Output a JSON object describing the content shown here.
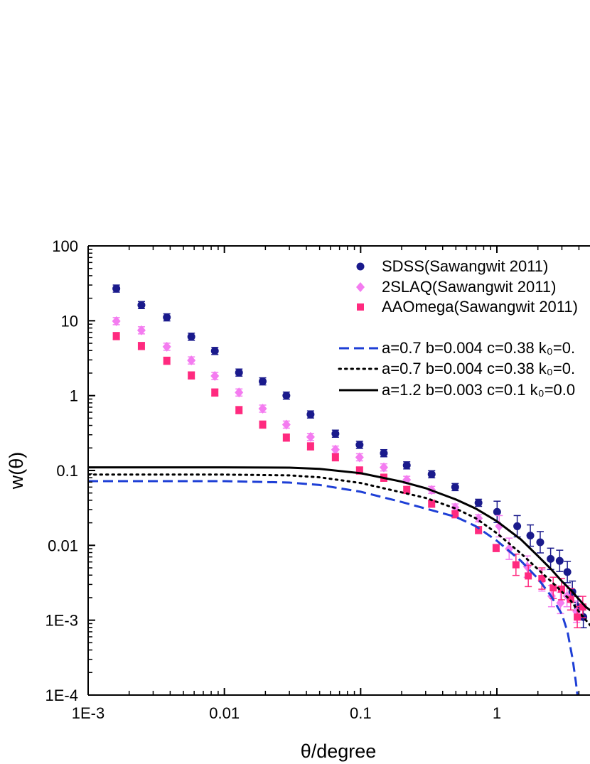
{
  "chart_data": {
    "type": "scatter",
    "x_scale": "log",
    "y_scale": "log",
    "xlim": [
      0.001,
      5
    ],
    "ylim": [
      0.0001,
      100
    ],
    "xlabel": "θ/degree",
    "ylabel": "w(θ)",
    "x_ticks": [
      {
        "value": 0.001,
        "label": "1E-3"
      },
      {
        "value": 0.01,
        "label": "0.01"
      },
      {
        "value": 0.1,
        "label": "0.1"
      },
      {
        "value": 1,
        "label": "1"
      }
    ],
    "y_ticks": [
      {
        "value": 0.0001,
        "label": "1E-4"
      },
      {
        "value": 0.001,
        "label": "1E-3"
      },
      {
        "value": 0.01,
        "label": "0.01"
      },
      {
        "value": 0.1,
        "label": "0.1"
      },
      {
        "value": 1,
        "label": "1"
      },
      {
        "value": 10,
        "label": "10"
      },
      {
        "value": 100,
        "label": "100"
      }
    ],
    "legend_position": "top-right",
    "series": [
      {
        "name": "SDSS(Sawangwit 2011)",
        "kind": "points",
        "marker": "circle",
        "color": "#1a1a8c",
        "x": [
          0.00161,
          0.00246,
          0.00378,
          0.00572,
          0.00851,
          0.0128,
          0.0191,
          0.0285,
          0.0429,
          0.0653,
          0.0982,
          0.148,
          0.218,
          0.332,
          0.494,
          0.733,
          1.004,
          1.41,
          1.76,
          2.08,
          2.48,
          2.89,
          3.29,
          3.58,
          3.93,
          4.31
        ],
        "y": [
          26.9,
          16.2,
          11.1,
          6.12,
          3.95,
          2.03,
          1.55,
          1.0,
          0.56,
          0.31,
          0.22,
          0.17,
          0.117,
          0.089,
          0.06,
          0.037,
          0.028,
          0.018,
          0.0135,
          0.011,
          0.0066,
          0.0062,
          0.0044,
          0.0024,
          0.0015,
          0.0011
        ]
      },
      {
        "name": "2SLAQ(Sawangwit 2011)",
        "kind": "points",
        "marker": "diamond",
        "color": "#f47cf0",
        "x": [
          0.00161,
          0.00246,
          0.00378,
          0.00572,
          0.00851,
          0.0128,
          0.0191,
          0.0285,
          0.0429,
          0.0653,
          0.0982,
          0.148,
          0.218,
          0.332,
          0.494,
          0.733,
          1.04,
          1.23,
          1.67,
          2.14,
          2.52,
          2.93,
          3.27,
          3.85
        ],
        "y": [
          9.88,
          7.45,
          4.5,
          2.95,
          1.83,
          1.1,
          0.67,
          0.41,
          0.28,
          0.19,
          0.15,
          0.11,
          0.075,
          0.055,
          0.032,
          0.023,
          0.018,
          0.009,
          0.0052,
          0.0034,
          0.0021,
          0.0017,
          0.0021,
          0.0013
        ]
      },
      {
        "name": "AAOmega(Sawangwit 2011)",
        "kind": "points",
        "marker": "square",
        "color": "#ff2a7f",
        "x": [
          0.00161,
          0.00246,
          0.00378,
          0.00572,
          0.00851,
          0.0128,
          0.0191,
          0.0285,
          0.0429,
          0.0653,
          0.0982,
          0.148,
          0.218,
          0.332,
          0.494,
          0.733,
          0.987,
          1.38,
          1.7,
          2.14,
          2.59,
          2.98,
          3.48,
          3.89,
          4.27
        ],
        "y": [
          6.24,
          4.6,
          2.92,
          1.86,
          1.1,
          0.64,
          0.41,
          0.275,
          0.21,
          0.15,
          0.1,
          0.08,
          0.055,
          0.036,
          0.026,
          0.016,
          0.0092,
          0.0055,
          0.0039,
          0.0036,
          0.0027,
          0.0026,
          0.0019,
          0.0011,
          0.0015
        ]
      },
      {
        "name": "a=0.7 b=0.004 c=0.38 k₀=0.",
        "kind": "line",
        "dash": "dashed",
        "color": "#1e3fd6",
        "x": [
          0.001,
          0.01,
          0.03,
          0.05,
          0.1,
          0.2,
          0.3,
          0.5,
          0.7,
          1.0,
          1.5,
          2.0,
          2.5,
          3.0,
          3.3,
          3.6,
          3.8,
          3.9
        ],
        "y": [
          0.072,
          0.072,
          0.069,
          0.064,
          0.052,
          0.038,
          0.031,
          0.024,
          0.018,
          0.0115,
          0.0062,
          0.0036,
          0.0021,
          0.0012,
          0.0007,
          0.0003,
          0.00015,
          0.0001
        ]
      },
      {
        "name": "a=0.7 b=0.004 c=0.38 k₀=0.",
        "kind": "line",
        "dash": "dotted",
        "color": "#000000",
        "x": [
          0.001,
          0.01,
          0.03,
          0.05,
          0.1,
          0.2,
          0.3,
          0.5,
          0.7,
          1.0,
          1.5,
          2.0,
          2.5,
          3.0,
          3.5,
          4.0,
          4.5,
          5.0
        ],
        "y": [
          0.088,
          0.088,
          0.086,
          0.081,
          0.068,
          0.051,
          0.043,
          0.031,
          0.023,
          0.0145,
          0.0078,
          0.0048,
          0.0033,
          0.0024,
          0.0018,
          0.0013,
          0.001,
          0.0008
        ]
      },
      {
        "name": "a=1.2 b=0.003 c=0.1 k₀=0.0",
        "kind": "line",
        "dash": "solid",
        "color": "#000000",
        "x": [
          0.001,
          0.01,
          0.03,
          0.05,
          0.1,
          0.2,
          0.3,
          0.5,
          0.7,
          1.0,
          1.5,
          2.0,
          2.5,
          3.0,
          3.5,
          4.0,
          4.5,
          5.0
        ],
        "y": [
          0.11,
          0.11,
          0.109,
          0.105,
          0.092,
          0.071,
          0.058,
          0.041,
          0.031,
          0.021,
          0.012,
          0.0072,
          0.0048,
          0.0033,
          0.0025,
          0.0019,
          0.0015,
          0.0013
        ]
      }
    ]
  }
}
